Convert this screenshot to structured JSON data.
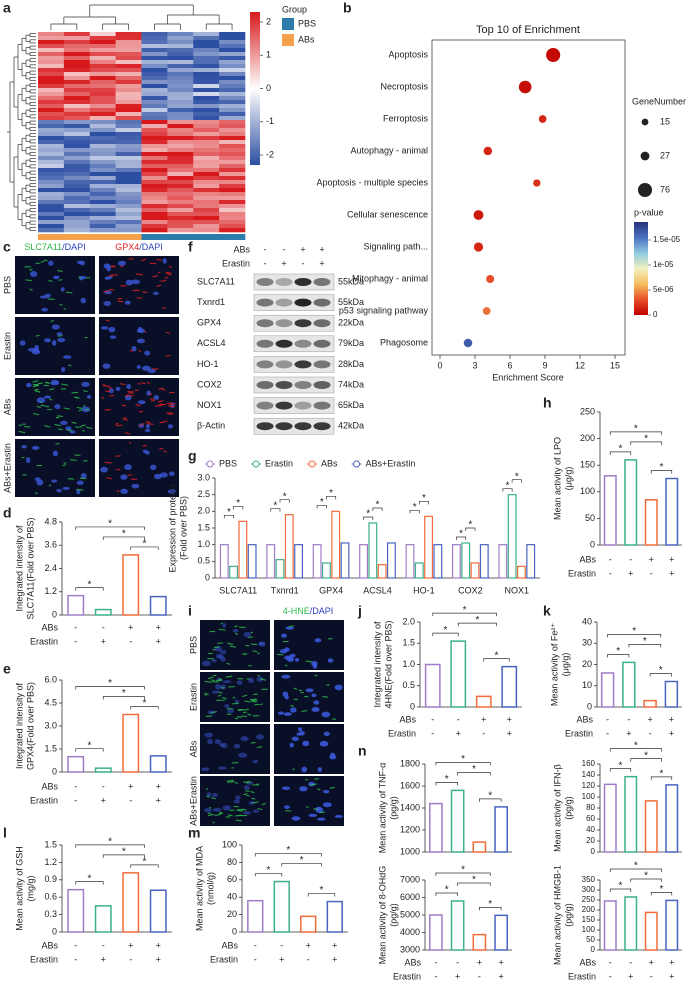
{
  "heatmap": {
    "panel": "a",
    "scale_ticks": [
      2,
      1,
      0,
      -1,
      -2
    ],
    "lim": [
      -2.3,
      2.3
    ],
    "legend_title": "Group",
    "groups": [
      {
        "name": "PBS",
        "color": "#2b7bab"
      },
      {
        "name": "ABs",
        "color": "#f5a04a"
      }
    ]
  },
  "micrographs_c": {
    "panel": "c",
    "columns": [
      {
        "stain": "SLC7A11",
        "stain_color": "#2db84a",
        "counter": "/DAPI",
        "counter_color": "#2a3fc0"
      },
      {
        "stain": "GPX4",
        "stain_color": "#e02020",
        "counter": "/DAPI",
        "counter_color": "#2a3fc0"
      }
    ],
    "rows": [
      "PBS",
      "Erastin",
      "ABs",
      "ABs+Erastin"
    ]
  },
  "western_blot": {
    "panel": "f",
    "conditions": [
      {
        "name": "ABs",
        "marks": [
          "-",
          "-",
          "+",
          "+"
        ]
      },
      {
        "name": "Erastin",
        "marks": [
          "-",
          "+",
          "-",
          "+"
        ]
      }
    ],
    "proteins": [
      {
        "name": "SLC7A11",
        "size": "55kDa"
      },
      {
        "name": "Txnrd1",
        "size": "55kDa"
      },
      {
        "name": "GPX4",
        "size": "22kDa"
      },
      {
        "name": "ACSL4",
        "size": "79kDa"
      },
      {
        "name": "HO-1",
        "size": "28kDa"
      },
      {
        "name": "COX2",
        "size": "74kDa"
      },
      {
        "name": "NOX1",
        "size": "65kDa"
      },
      {
        "name": "β-Actin",
        "size": "42kDa"
      }
    ]
  },
  "micrographs_i": {
    "panel": "i",
    "column": {
      "stain": "4-HNE",
      "stain_color": "#2db84a",
      "counter": "/DAPI",
      "counter_color": "#2a3fc0"
    },
    "rows": [
      "PBS",
      "Erastin",
      "ABs",
      "ABs+Erastin"
    ]
  },
  "chart_data": [
    {
      "type": "dot",
      "panel": "b",
      "title": "Top 10 of  Enrichment",
      "xlabel": "Enrichment Score",
      "categories": [
        "Apoptosis",
        "Necroptosis",
        "Ferroptosis",
        "Autophagy - animal",
        "Apoptosis - multiple species",
        "Cellular senescence",
        "Signaling path...",
        "Mitophagy - animal",
        "p53 signaling pathway",
        "Phagosome"
      ],
      "values": [
        9.7,
        7.3,
        8.8,
        4.1,
        8.3,
        3.3,
        3.3,
        4.3,
        4.0,
        2.4
      ],
      "sizes": [
        76,
        60,
        20,
        25,
        18,
        35,
        30,
        22,
        20,
        25
      ],
      "pvalues": [
        3e-07,
        5e-07,
        1.5e-06,
        1.5e-06,
        2e-06,
        1e-06,
        1.5e-06,
        3e-06,
        4e-06,
        1.65e-05
      ],
      "label_colors": [
        "#222222",
        "#222222",
        "#e03030",
        "#222222",
        "#222222",
        "#222222",
        "#222222",
        "#222222",
        "#222222",
        "#222222"
      ],
      "xlim": [
        0,
        15
      ],
      "xticks": [
        0,
        3,
        6,
        9,
        12,
        15
      ],
      "size_legend_title": "GeneNumber",
      "size_ticks": [
        15,
        27,
        76
      ],
      "color_legend_title": "p-value",
      "clim": [
        0,
        1.86e-05
      ],
      "color_ticks": [
        0,
        {
          "value": 5e-06,
          "label": "5e-06"
        },
        {
          "value": 1e-05,
          "label": "1e-05"
        },
        {
          "value": 1.5e-05,
          "label": "1.5e-05"
        }
      ],
      "colormap": [
        "#c00000",
        "#e8502a",
        "#f5c060",
        "#f2f0c0",
        "#8ecae0",
        "#4a70c0",
        "#26337a"
      ]
    },
    {
      "type": "grouped_bar",
      "panel": "g",
      "ylabel": [
        "Expression of  proteins",
        "(Fold over PBS)"
      ],
      "categories": [
        "SLC7A11",
        "Txnrd1",
        "GPX4",
        "ACSL4",
        "HO-1",
        "COX2",
        "NOX1"
      ],
      "series": [
        {
          "name": "PBS",
          "color": "#a07cc8",
          "values": [
            1,
            1,
            1,
            1,
            1,
            1,
            1
          ]
        },
        {
          "name": "Erastin",
          "color": "#3bb089",
          "values": [
            0.35,
            0.55,
            0.45,
            1.65,
            0.45,
            1.05,
            2.5
          ]
        },
        {
          "name": "ABs",
          "color": "#f26b3a",
          "values": [
            1.7,
            1.9,
            2.0,
            0.4,
            1.85,
            0.45,
            0.35
          ]
        },
        {
          "name": "ABs+Erastin",
          "color": "#4a63c0",
          "values": [
            1,
            1,
            1.05,
            1.05,
            1,
            1,
            1
          ]
        }
      ],
      "ylim": [
        0,
        3
      ],
      "yticks": [
        0,
        0.5,
        {
          "value": 1,
          "label": "1.0"
        },
        1.5,
        {
          "value": 2,
          "label": "2.0"
        },
        2.5,
        {
          "value": 3,
          "label": "3.0"
        }
      ],
      "significance_label": "*"
    },
    {
      "type": "bar",
      "panel": "d",
      "ylabel": [
        "Integrated intensity of",
        "SLC7A11(Fold over PBS)"
      ],
      "values": [
        1,
        0.28,
        3.1,
        0.95
      ],
      "colors": [
        "#a07cc8",
        "#3bb089",
        "#f26b3a",
        "#4a63c0"
      ],
      "ylim": [
        0,
        4.8
      ],
      "yticks": [
        0,
        1.2,
        2.4,
        3.6,
        4.8
      ],
      "conditions": [
        {
          "name": "ABs",
          "marks": [
            "-",
            "-",
            "+",
            "+"
          ]
        },
        {
          "name": "Erastin",
          "marks": [
            "-",
            "+",
            "-",
            "+"
          ]
        }
      ],
      "significance_label": "*"
    },
    {
      "type": "bar",
      "panel": "e",
      "ylabel": [
        "Integrated intensity of",
        "GPX4(Fold over PBS)"
      ],
      "values": [
        1,
        0.25,
        3.75,
        1.05
      ],
      "colors": [
        "#a07cc8",
        "#3bb089",
        "#f26b3a",
        "#4a63c0"
      ],
      "ylim": [
        0,
        6
      ],
      "yticks": [
        0,
        1.5,
        {
          "value": 3,
          "label": "3.0"
        },
        4.5,
        {
          "value": 6,
          "label": "6.0"
        }
      ],
      "conditions": [
        {
          "name": "ABs",
          "marks": [
            "-",
            "-",
            "+",
            "+"
          ]
        },
        {
          "name": "Erastin",
          "marks": [
            "-",
            "+",
            "-",
            "+"
          ]
        }
      ],
      "significance_label": "*"
    },
    {
      "type": "bar",
      "panel": "h",
      "ylabel": [
        "Mean activity of LPO",
        "(μg/g)"
      ],
      "values": [
        130,
        160,
        85,
        125
      ],
      "colors": [
        "#a07cc8",
        "#3bb089",
        "#f26b3a",
        "#4a63c0"
      ],
      "ylim": [
        0,
        250
      ],
      "yticks": [
        0,
        50,
        100,
        150,
        200,
        250
      ],
      "conditions": [
        {
          "name": "ABs",
          "marks": [
            "-",
            "-",
            "+",
            "+"
          ]
        },
        {
          "name": "Erastin",
          "marks": [
            "-",
            "+",
            "-",
            "+"
          ]
        }
      ],
      "significance_label": "*"
    },
    {
      "type": "bar",
      "panel": "j",
      "ylabel": [
        "Integrated intensity of",
        "4HNE(Fold over PBS)"
      ],
      "values": [
        1,
        1.55,
        0.25,
        0.95
      ],
      "colors": [
        "#a07cc8",
        "#3bb089",
        "#f26b3a",
        "#4a63c0"
      ],
      "ylim": [
        0,
        2
      ],
      "yticks": [
        0,
        0.5,
        {
          "value": 1,
          "label": "1.0"
        },
        1.5,
        {
          "value": 2,
          "label": "2.0"
        }
      ],
      "conditions": [
        {
          "name": "ABs",
          "marks": [
            "-",
            "-",
            "+",
            "+"
          ]
        },
        {
          "name": "Erastin",
          "marks": [
            "-",
            "+",
            "-",
            "+"
          ]
        }
      ],
      "significance_label": "*"
    },
    {
      "type": "bar",
      "panel": "k",
      "ylabel": [
        "Mean activity of Fe²⁺",
        "(μg/g)"
      ],
      "values": [
        16,
        21,
        3,
        12
      ],
      "colors": [
        "#a07cc8",
        "#3bb089",
        "#f26b3a",
        "#4a63c0"
      ],
      "ylim": [
        0,
        40
      ],
      "yticks": [
        0,
        10,
        20,
        30,
        40
      ],
      "conditions": [
        {
          "name": "ABs",
          "marks": [
            "-",
            "-",
            "+",
            "+"
          ]
        },
        {
          "name": "Erastin",
          "marks": [
            "-",
            "+",
            "-",
            "+"
          ]
        }
      ],
      "significance_label": "*"
    },
    {
      "type": "bar",
      "panel": "l",
      "ylabel": [
        "Mean activity of GSH",
        "(mg/g)"
      ],
      "values": [
        0.73,
        0.45,
        1.02,
        0.72
      ],
      "colors": [
        "#a07cc8",
        "#3bb089",
        "#f26b3a",
        "#4a63c0"
      ],
      "ylim": [
        0,
        1.5
      ],
      "yticks": [
        0,
        0.3,
        0.6,
        0.9,
        1.2,
        1.5
      ],
      "conditions": [
        {
          "name": "ABs",
          "marks": [
            "-",
            "-",
            "+",
            "+"
          ]
        },
        {
          "name": "Erastin",
          "marks": [
            "-",
            "+",
            "-",
            "+"
          ]
        }
      ],
      "significance_label": "*"
    },
    {
      "type": "bar",
      "panel": "m",
      "ylabel": [
        "Mean activity of MDA",
        "(nmol/g)"
      ],
      "values": [
        36,
        58,
        18,
        35
      ],
      "colors": [
        "#a07cc8",
        "#3bb089",
        "#f26b3a",
        "#4a63c0"
      ],
      "ylim": [
        0,
        100
      ],
      "yticks": [
        0,
        20,
        40,
        60,
        80,
        100
      ],
      "conditions": [
        {
          "name": "ABs",
          "marks": [
            "-",
            "-",
            "+",
            "+"
          ]
        },
        {
          "name": "Erastin",
          "marks": [
            "-",
            "+",
            "-",
            "+"
          ]
        }
      ],
      "significance_label": "*"
    },
    {
      "type": "bar",
      "panel": "n",
      "ylabel": [
        "Mean activity of TNF-α",
        "(pg/g)"
      ],
      "values": [
        1440,
        1560,
        1090,
        1410
      ],
      "colors": [
        "#a07cc8",
        "#3bb089",
        "#f26b3a",
        "#4a63c0"
      ],
      "ylim": [
        1000,
        1800
      ],
      "yticks": [
        1000,
        1200,
        1400,
        1600,
        1800
      ],
      "significance_label": "*"
    },
    {
      "type": "bar",
      "ylabel": [
        "Mean activity of IFN-β",
        "(pg/g)"
      ],
      "values": [
        123,
        137,
        93,
        122
      ],
      "colors": [
        "#a07cc8",
        "#3bb089",
        "#f26b3a",
        "#4a63c0"
      ],
      "ylim": [
        0,
        160
      ],
      "yticks": [
        0,
        20,
        40,
        60,
        80,
        100,
        120,
        140,
        160
      ],
      "significance_label": "*"
    },
    {
      "type": "bar",
      "ylabel": [
        "Mean activity of 8-OHdG",
        "(pg/g)"
      ],
      "values": [
        5000,
        5800,
        3880,
        4980
      ],
      "colors": [
        "#a07cc8",
        "#3bb089",
        "#f26b3a",
        "#4a63c0"
      ],
      "ylim": [
        3000,
        7000
      ],
      "yticks": [
        3000,
        4000,
        5000,
        6000,
        7000
      ],
      "conditions": [
        {
          "name": "ABs",
          "marks": [
            "-",
            "-",
            "+",
            "+"
          ]
        },
        {
          "name": "Erastin",
          "marks": [
            "-",
            "+",
            "-",
            "+"
          ]
        }
      ],
      "significance_label": "*"
    },
    {
      "type": "bar",
      "ylabel": [
        "Mean activity of HMGB-1",
        "(pg/g)"
      ],
      "values": [
        245,
        265,
        188,
        248
      ],
      "colors": [
        "#a07cc8",
        "#3bb089",
        "#f26b3a",
        "#4a63c0"
      ],
      "ylim": [
        0,
        350
      ],
      "yticks": [
        0,
        50,
        100,
        150,
        200,
        250,
        300,
        350
      ],
      "conditions": [
        {
          "name": "ABs",
          "marks": [
            "-",
            "-",
            "+",
            "+"
          ]
        },
        {
          "name": "Erastin",
          "marks": [
            "-",
            "+",
            "-",
            "+"
          ]
        }
      ],
      "significance_label": "*"
    }
  ]
}
